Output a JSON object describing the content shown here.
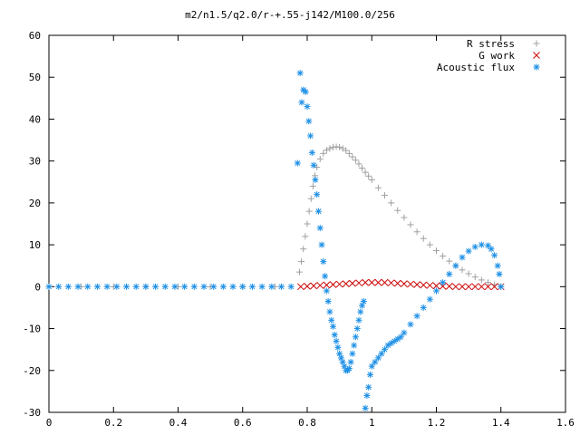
{
  "chart_data": {
    "type": "scatter",
    "title": "m2/n1.5/q2.0/r-+.55-j142/M100.0/256",
    "xlabel": "",
    "ylabel": "",
    "xlim": [
      0,
      1.6
    ],
    "ylim": [
      -30,
      60
    ],
    "x_ticks": [
      "0",
      "0.2",
      "0.4",
      "0.6",
      "0.8",
      "1",
      "1.2",
      "1.4",
      "1.6"
    ],
    "y_ticks": [
      "60",
      "50",
      "40",
      "30",
      "20",
      "10",
      "0",
      "-10",
      "-20",
      "-30"
    ],
    "grid": false,
    "legend_position": "top-right",
    "series": [
      {
        "name": "R stress",
        "marker": "plus",
        "color": "#a0a0a0",
        "points": [
          [
            0.0,
            0
          ],
          [
            0.1,
            0
          ],
          [
            0.2,
            0
          ],
          [
            0.3,
            0
          ],
          [
            0.4,
            0
          ],
          [
            0.5,
            0
          ],
          [
            0.6,
            0
          ],
          [
            0.7,
            0
          ],
          [
            0.776,
            3.5
          ],
          [
            0.782,
            6
          ],
          [
            0.788,
            9
          ],
          [
            0.794,
            12
          ],
          [
            0.8,
            15
          ],
          [
            0.806,
            18
          ],
          [
            0.812,
            21
          ],
          [
            0.818,
            24
          ],
          [
            0.824,
            26.5
          ],
          [
            0.83,
            28.5
          ],
          [
            0.84,
            30.5
          ],
          [
            0.85,
            31.8
          ],
          [
            0.86,
            32.6
          ],
          [
            0.87,
            33.0
          ],
          [
            0.88,
            33.3
          ],
          [
            0.89,
            33.4
          ],
          [
            0.9,
            33.3
          ],
          [
            0.91,
            33.0
          ],
          [
            0.92,
            32.5
          ],
          [
            0.93,
            31.8
          ],
          [
            0.94,
            31.0
          ],
          [
            0.95,
            30.2
          ],
          [
            0.96,
            29.3
          ],
          [
            0.97,
            28.3
          ],
          [
            0.98,
            27.3
          ],
          [
            0.99,
            26.4
          ],
          [
            1.0,
            25.5
          ],
          [
            1.02,
            23.6
          ],
          [
            1.04,
            21.8
          ],
          [
            1.06,
            20.0
          ],
          [
            1.08,
            18.2
          ],
          [
            1.1,
            16.5
          ],
          [
            1.12,
            14.8
          ],
          [
            1.14,
            13.1
          ],
          [
            1.16,
            11.5
          ],
          [
            1.18,
            10.0
          ],
          [
            1.2,
            8.6
          ],
          [
            1.22,
            7.3
          ],
          [
            1.24,
            6.1
          ],
          [
            1.26,
            5.0
          ],
          [
            1.28,
            4.0
          ],
          [
            1.3,
            3.1
          ],
          [
            1.32,
            2.3
          ],
          [
            1.34,
            1.6
          ],
          [
            1.36,
            1.0
          ],
          [
            1.38,
            0.5
          ],
          [
            1.4,
            0.0
          ]
        ]
      },
      {
        "name": "G work",
        "marker": "cross",
        "color": "#cc0000",
        "points": [
          [
            0.78,
            0.0
          ],
          [
            0.8,
            0.1
          ],
          [
            0.82,
            0.2
          ],
          [
            0.84,
            0.3
          ],
          [
            0.86,
            0.4
          ],
          [
            0.88,
            0.5
          ],
          [
            0.9,
            0.6
          ],
          [
            0.92,
            0.7
          ],
          [
            0.94,
            0.8
          ],
          [
            0.96,
            0.9
          ],
          [
            0.98,
            1.0
          ],
          [
            1.0,
            1.0
          ],
          [
            1.02,
            1.0
          ],
          [
            1.04,
            1.0
          ],
          [
            1.06,
            0.9
          ],
          [
            1.08,
            0.8
          ],
          [
            1.1,
            0.7
          ],
          [
            1.12,
            0.6
          ],
          [
            1.14,
            0.5
          ],
          [
            1.16,
            0.4
          ],
          [
            1.18,
            0.3
          ],
          [
            1.2,
            0.2
          ],
          [
            1.22,
            0.1
          ],
          [
            1.24,
            0.1
          ],
          [
            1.26,
            0.0
          ],
          [
            1.28,
            0.0
          ],
          [
            1.3,
            0.0
          ],
          [
            1.32,
            0.0
          ],
          [
            1.34,
            0.0
          ],
          [
            1.36,
            0.0
          ],
          [
            1.38,
            0.0
          ],
          [
            1.4,
            0.0
          ]
        ]
      },
      {
        "name": "Acoustic flux",
        "marker": "star",
        "color": "#1e90e6",
        "points": [
          [
            0.0,
            0
          ],
          [
            0.03,
            0
          ],
          [
            0.06,
            0
          ],
          [
            0.09,
            0
          ],
          [
            0.12,
            0
          ],
          [
            0.15,
            0
          ],
          [
            0.18,
            0
          ],
          [
            0.21,
            0
          ],
          [
            0.24,
            0
          ],
          [
            0.27,
            0
          ],
          [
            0.3,
            0
          ],
          [
            0.33,
            0
          ],
          [
            0.36,
            0
          ],
          [
            0.39,
            0
          ],
          [
            0.42,
            0
          ],
          [
            0.45,
            0
          ],
          [
            0.48,
            0
          ],
          [
            0.51,
            0
          ],
          [
            0.54,
            0
          ],
          [
            0.57,
            0
          ],
          [
            0.6,
            0
          ],
          [
            0.63,
            0
          ],
          [
            0.66,
            0
          ],
          [
            0.69,
            0
          ],
          [
            0.72,
            0
          ],
          [
            0.75,
            0
          ],
          [
            0.77,
            29.5
          ],
          [
            0.778,
            51
          ],
          [
            0.783,
            44
          ],
          [
            0.788,
            47
          ],
          [
            0.795,
            46.5
          ],
          [
            0.8,
            43
          ],
          [
            0.805,
            39.5
          ],
          [
            0.81,
            36
          ],
          [
            0.815,
            32
          ],
          [
            0.82,
            29
          ],
          [
            0.825,
            25.5
          ],
          [
            0.83,
            22
          ],
          [
            0.835,
            18
          ],
          [
            0.84,
            14
          ],
          [
            0.845,
            10
          ],
          [
            0.85,
            6
          ],
          [
            0.855,
            2.5
          ],
          [
            0.86,
            -1
          ],
          [
            0.865,
            -3.5
          ],
          [
            0.87,
            -6
          ],
          [
            0.875,
            -8
          ],
          [
            0.88,
            -9.5
          ],
          [
            0.885,
            -11.5
          ],
          [
            0.89,
            -13
          ],
          [
            0.895,
            -14.5
          ],
          [
            0.9,
            -16
          ],
          [
            0.905,
            -17
          ],
          [
            0.91,
            -18
          ],
          [
            0.915,
            -19
          ],
          [
            0.92,
            -20
          ],
          [
            0.925,
            -20
          ],
          [
            0.93,
            -19.5
          ],
          [
            0.935,
            -18
          ],
          [
            0.94,
            -16
          ],
          [
            0.945,
            -14
          ],
          [
            0.95,
            -12
          ],
          [
            0.955,
            -10
          ],
          [
            0.96,
            -8
          ],
          [
            0.965,
            -6
          ],
          [
            0.97,
            -4.5
          ],
          [
            0.975,
            -3.5
          ],
          [
            0.98,
            -29
          ],
          [
            0.985,
            -26
          ],
          [
            0.99,
            -24
          ],
          [
            0.995,
            -21
          ],
          [
            1.0,
            -19
          ],
          [
            1.01,
            -18
          ],
          [
            1.02,
            -17
          ],
          [
            1.03,
            -16
          ],
          [
            1.04,
            -15
          ],
          [
            1.05,
            -14
          ],
          [
            1.06,
            -13.5
          ],
          [
            1.07,
            -13
          ],
          [
            1.08,
            -12.5
          ],
          [
            1.09,
            -12
          ],
          [
            1.1,
            -11
          ],
          [
            1.12,
            -9
          ],
          [
            1.14,
            -7
          ],
          [
            1.16,
            -5
          ],
          [
            1.18,
            -3
          ],
          [
            1.2,
            -1
          ],
          [
            1.22,
            1
          ],
          [
            1.24,
            3
          ],
          [
            1.26,
            5
          ],
          [
            1.28,
            7
          ],
          [
            1.3,
            8.5
          ],
          [
            1.32,
            9.5
          ],
          [
            1.34,
            10
          ],
          [
            1.36,
            9.8
          ],
          [
            1.37,
            9
          ],
          [
            1.38,
            7.5
          ],
          [
            1.39,
            5
          ],
          [
            1.395,
            3
          ],
          [
            1.4,
            0
          ]
        ]
      }
    ]
  }
}
